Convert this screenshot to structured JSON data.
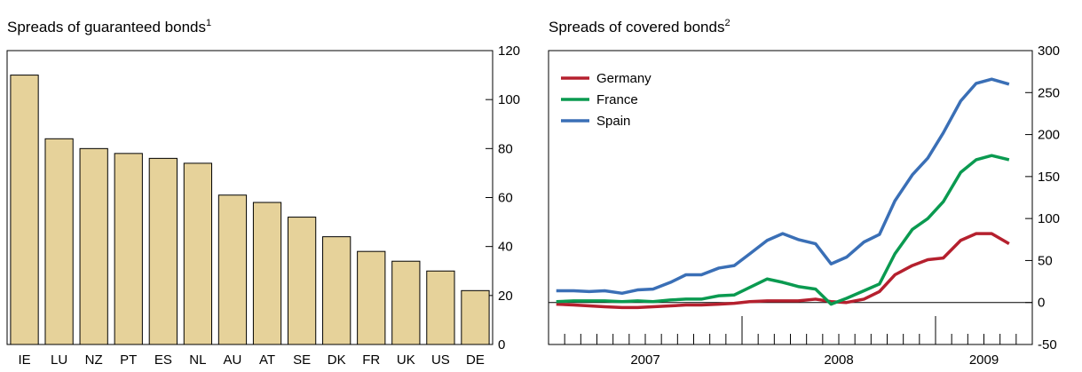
{
  "chart_data": [
    {
      "type": "bar",
      "title": "Spreads of guaranteed bonds",
      "title_note": "1",
      "categories": [
        "IE",
        "LU",
        "NZ",
        "PT",
        "ES",
        "NL",
        "AU",
        "AT",
        "SE",
        "DK",
        "FR",
        "UK",
        "US",
        "DE"
      ],
      "values": [
        110,
        84,
        80,
        78,
        76,
        74,
        61,
        58,
        52,
        44,
        38,
        34,
        30,
        22
      ],
      "color": "#e6d29a",
      "ylim": [
        0,
        120
      ],
      "yticks": [
        0,
        20,
        40,
        60,
        80,
        100,
        120
      ]
    },
    {
      "type": "line",
      "title": "Spreads of covered bonds",
      "title_note": "2",
      "x": [
        2007.04,
        2007.13,
        2007.21,
        2007.29,
        2007.38,
        2007.46,
        2007.54,
        2007.63,
        2007.71,
        2007.79,
        2007.88,
        2007.96,
        2008.04,
        2008.13,
        2008.21,
        2008.29,
        2008.38,
        2008.46,
        2008.54,
        2008.63,
        2008.71,
        2008.79,
        2008.88,
        2008.96,
        2009.04,
        2009.13,
        2009.21,
        2009.29,
        2009.38
      ],
      "series": [
        {
          "name": "Germany",
          "color": "#b5202e",
          "values": [
            -2,
            -3,
            -4,
            -5,
            -6,
            -6,
            -5,
            -4,
            -3,
            -3,
            -2,
            -1,
            1,
            2,
            2,
            2,
            4,
            1,
            0,
            4,
            13,
            33,
            44,
            51,
            53,
            74,
            82,
            82,
            70
          ]
        },
        {
          "name": "France",
          "color": "#0a9a50",
          "values": [
            1,
            2,
            2,
            2,
            1,
            2,
            1,
            3,
            4,
            4,
            8,
            9,
            18,
            28,
            24,
            19,
            16,
            -2,
            5,
            14,
            22,
            58,
            87,
            100,
            120,
            155,
            170,
            175,
            170
          ]
        },
        {
          "name": "Spain",
          "color": "#3a6fb6",
          "values": [
            14,
            14,
            13,
            14,
            11,
            15,
            16,
            24,
            33,
            33,
            41,
            44,
            58,
            74,
            82,
            75,
            70,
            46,
            54,
            72,
            81,
            121,
            152,
            172,
            202,
            240,
            261,
            266,
            260
          ]
        }
      ],
      "xlim": [
        2007,
        2009.5
      ],
      "xticks": [
        {
          "value": 2007.5,
          "label": "2007"
        },
        {
          "value": 2008.5,
          "label": "2008"
        },
        {
          "value": 2009.25,
          "label": "2009"
        }
      ],
      "ylim": [
        -50,
        300
      ],
      "yticks": [
        -50,
        0,
        50,
        100,
        150,
        200,
        250,
        300
      ],
      "legend": "top-left"
    }
  ]
}
